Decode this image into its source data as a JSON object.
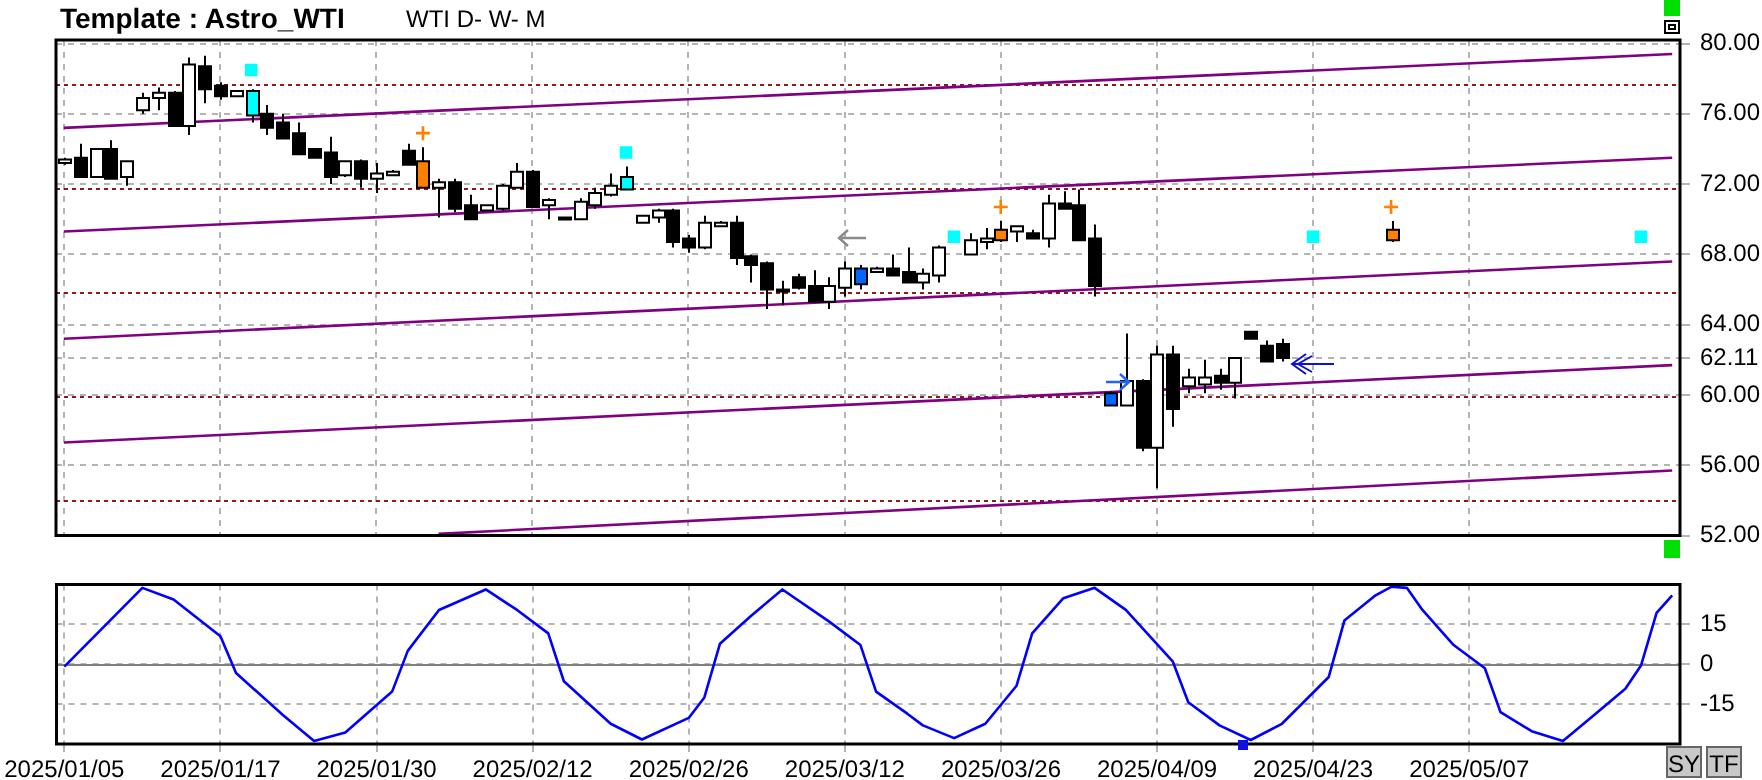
{
  "chart_data": [
    {
      "type": "candlestick",
      "title": "Template : Astro_WTI",
      "annotations": [
        "WTI D- W- M"
      ],
      "categories": [
        "2025/01/05",
        null,
        null,
        null,
        null,
        null,
        null,
        null,
        null,
        null,
        "2025/01/17",
        null,
        null,
        null,
        null,
        null,
        null,
        null,
        null,
        null,
        "2025/01/30",
        null,
        null,
        null,
        null,
        null,
        null,
        null,
        null,
        null,
        "2025/02/12",
        null,
        null,
        null,
        null,
        null,
        null,
        null,
        null,
        null,
        "2025/02/26",
        null,
        null,
        null,
        null,
        null,
        null,
        null,
        null,
        null,
        "2025/03/12",
        null,
        null,
        null,
        null,
        null,
        null,
        null,
        null,
        null,
        "2025/03/26",
        null,
        null,
        null,
        null,
        null,
        null,
        null,
        null,
        null,
        "2025/04/09",
        null,
        null,
        null,
        null,
        null,
        null,
        null,
        null,
        null,
        "2025/04/23",
        null,
        null,
        null,
        null,
        null,
        null,
        null,
        null,
        null,
        "2025/05/07",
        null,
        null,
        null,
        null,
        null,
        null,
        null,
        null,
        null,
        null,
        null,
        null,
        null
      ],
      "ohlc": [
        [
          73.2,
          73.5,
          73.1,
          73.4
        ],
        [
          73.5,
          74.3,
          72.4,
          72.4
        ],
        [
          72.4,
          74.0,
          72.4,
          74.0
        ],
        [
          74.0,
          74.5,
          72.3,
          72.3
        ],
        [
          72.4,
          73.3,
          71.9,
          73.3
        ],
        [
          76.2,
          77.2,
          76.0,
          76.9
        ],
        [
          76.9,
          77.5,
          76.2,
          77.2
        ],
        [
          77.2,
          77.3,
          75.3,
          75.3
        ],
        [
          75.3,
          79.2,
          74.8,
          78.8
        ],
        [
          78.7,
          79.3,
          76.6,
          77.4
        ],
        [
          77.6,
          77.8,
          76.8,
          77.0
        ],
        [
          77.0,
          77.3,
          77.0,
          77.3
        ],
        [
          75.9,
          77.4,
          75.5,
          77.3
        ],
        [
          76.0,
          76.5,
          74.8,
          75.2
        ],
        [
          75.5,
          76.0,
          74.6,
          74.6
        ],
        [
          74.9,
          75.5,
          73.7,
          73.7
        ],
        [
          74.0,
          74.0,
          73.5,
          73.5
        ],
        [
          73.8,
          74.7,
          72.0,
          72.4
        ],
        [
          72.5,
          73.3,
          72.4,
          73.3
        ],
        [
          73.3,
          73.4,
          71.8,
          72.3
        ],
        [
          72.3,
          73.2,
          71.5,
          72.6
        ],
        [
          72.5,
          72.8,
          72.5,
          72.7
        ],
        [
          73.9,
          74.3,
          73.1,
          73.1
        ],
        [
          73.3,
          74.1,
          71.8,
          71.8
        ],
        [
          71.8,
          72.3,
          70.1,
          72.1
        ],
        [
          72.1,
          72.3,
          70.4,
          70.6
        ],
        [
          70.8,
          71.4,
          70.0,
          70.0
        ],
        [
          70.5,
          70.8,
          70.5,
          70.8
        ],
        [
          70.6,
          72.0,
          70.5,
          71.9
        ],
        [
          71.8,
          73.2,
          71.8,
          72.7
        ],
        [
          72.7,
          72.8,
          70.7,
          70.7
        ],
        [
          70.8,
          71.2,
          70.0,
          71.1
        ],
        [
          70.0,
          70.1,
          70.0,
          70.1
        ],
        [
          70.0,
          71.2,
          70.0,
          71.0
        ],
        [
          70.8,
          71.8,
          70.6,
          71.5
        ],
        [
          71.4,
          72.6,
          71.3,
          71.9
        ],
        [
          71.7,
          73.0,
          71.7,
          72.4
        ],
        [
          69.8,
          70.2,
          69.8,
          70.2
        ],
        [
          70.1,
          70.6,
          69.8,
          70.5
        ],
        [
          70.5,
          70.6,
          68.4,
          68.7
        ],
        [
          68.9,
          69.1,
          68.1,
          68.4
        ],
        [
          68.4,
          70.2,
          68.3,
          69.8
        ],
        [
          69.6,
          69.9,
          69.6,
          69.8
        ],
        [
          69.8,
          70.2,
          67.4,
          67.8
        ],
        [
          67.9,
          68.0,
          66.4,
          67.4
        ],
        [
          67.5,
          67.6,
          64.9,
          66.0
        ],
        [
          66.0,
          66.5,
          65.1,
          66.0
        ],
        [
          66.7,
          66.9,
          66.0,
          66.1
        ],
        [
          66.2,
          67.1,
          65.3,
          65.3
        ],
        [
          65.3,
          66.7,
          64.9,
          66.2
        ],
        [
          66.1,
          67.6,
          65.6,
          67.2
        ],
        [
          66.3,
          67.4,
          66.0,
          67.2
        ],
        [
          67.0,
          67.3,
          67.0,
          67.2
        ],
        [
          67.2,
          68.0,
          66.8,
          66.8
        ],
        [
          67.0,
          68.4,
          66.4,
          66.4
        ],
        [
          66.4,
          67.2,
          66.0,
          66.9
        ],
        [
          66.8,
          68.5,
          66.4,
          68.4
        ],
        null,
        [
          68.0,
          69.2,
          68.0,
          68.8
        ],
        [
          68.7,
          69.5,
          68.3,
          68.9
        ],
        [
          68.8,
          69.9,
          68.7,
          69.4
        ],
        [
          69.3,
          69.6,
          68.7,
          69.6
        ],
        [
          69.2,
          69.4,
          68.9,
          68.9
        ],
        [
          68.9,
          71.4,
          68.4,
          70.9
        ],
        [
          70.9,
          71.6,
          70.6,
          70.6
        ],
        [
          70.8,
          71.7,
          68.8,
          68.8
        ],
        [
          68.9,
          69.7,
          65.6,
          66.2
        ],
        [
          60.1,
          60.2,
          59.4,
          59.4
        ],
        [
          59.4,
          63.5,
          59.4,
          60.8
        ],
        [
          60.8,
          60.9,
          56.8,
          57.0
        ],
        [
          57.0,
          62.8,
          54.7,
          62.3
        ],
        [
          62.3,
          62.8,
          58.2,
          59.2
        ],
        [
          60.5,
          61.5,
          60.1,
          61.0
        ],
        [
          60.6,
          62.0,
          60.1,
          61.0
        ],
        [
          61.1,
          61.5,
          60.3,
          60.7
        ],
        [
          60.7,
          62.1,
          59.8,
          62.1
        ],
        [
          63.6,
          63.6,
          63.2,
          63.2
        ],
        [
          62.8,
          63.1,
          61.9,
          61.9
        ],
        [
          62.9,
          63.2,
          61.9,
          62.11
        ],
        null,
        null,
        null,
        null,
        null,
        null,
        [
          68.8,
          69.9,
          68.7,
          69.4
        ],
        null,
        null,
        null,
        null,
        null,
        null,
        null,
        null,
        null,
        null,
        null,
        null,
        null,
        null,
        null,
        null,
        null,
        null
      ],
      "colors": [
        "#ffffff",
        "#000000",
        "#ffffff",
        "#000000",
        "#ffffff",
        "#ffffff",
        "#ffffff",
        "#000000",
        "#ffffff",
        "#000000",
        "#000000",
        "#ffffff",
        "#00ffff",
        "#000000",
        "#000000",
        "#000000",
        "#000000",
        "#000000",
        "#ffffff",
        "#000000",
        "#ffffff",
        "#ffffff",
        "#000000",
        "#ff8000",
        "#ffffff",
        "#000000",
        "#000000",
        "#ffffff",
        "#ffffff",
        "#ffffff",
        "#000000",
        "#ffffff",
        "#ffffff",
        "#ffffff",
        "#ffffff",
        "#ffffff",
        "#00ffff",
        "#ffffff",
        "#ffffff",
        "#000000",
        "#000000",
        "#ffffff",
        "#ffffff",
        "#000000",
        "#000000",
        "#000000",
        "#000000",
        "#000000",
        "#000000",
        "#ffffff",
        "#ffffff",
        "#0066ff",
        "#ffffff",
        "#000000",
        "#000000",
        "#ffffff",
        "#ffffff",
        null,
        "#ffffff",
        "#ffffff",
        "#ff8000",
        "#ffffff",
        "#000000",
        "#ffffff",
        "#000000",
        "#000000",
        "#000000",
        "#0066ff",
        "#ffffff",
        "#000000",
        "#ffffff",
        "#000000",
        "#ffffff",
        "#ffffff",
        "#000000",
        "#ffffff",
        "#000000",
        "#000000",
        "#000000",
        null,
        null,
        null,
        null,
        null,
        null,
        "#ff8000",
        null,
        null,
        null,
        null,
        null,
        null,
        null,
        null,
        null,
        null,
        null,
        null,
        null,
        null,
        null,
        null,
        null,
        null
      ],
      "series": [
        {
          "type": "line",
          "color": "#800080",
          "values": [
            75.2,
            null,
            null,
            null,
            null,
            null,
            null,
            null,
            null,
            null,
            null,
            null,
            null,
            null,
            null,
            null,
            null,
            null,
            null,
            null,
            null,
            null,
            null,
            null,
            null,
            null,
            null,
            null,
            null,
            null,
            null,
            null,
            null,
            null,
            null,
            null,
            null,
            null,
            null,
            null,
            null,
            null,
            null,
            null,
            null,
            null,
            null,
            null,
            null,
            null,
            null,
            null,
            null,
            null,
            null,
            null,
            null,
            null,
            null,
            null,
            null,
            null,
            null,
            null,
            null,
            null,
            null,
            null,
            null,
            null,
            null,
            null,
            null,
            null,
            null,
            null,
            null,
            null,
            null,
            null,
            null,
            null,
            null,
            null,
            null,
            null,
            null,
            null,
            null,
            null,
            null,
            null,
            null,
            null,
            null,
            null,
            null,
            null,
            null,
            null,
            null,
            null,
            null,
            79.4
          ]
        },
        {
          "type": "line",
          "color": "#800080",
          "values": [
            69.3,
            null,
            null,
            null,
            null,
            null,
            null,
            null,
            null,
            null,
            null,
            null,
            null,
            null,
            null,
            null,
            null,
            null,
            null,
            null,
            null,
            null,
            null,
            null,
            null,
            null,
            null,
            null,
            null,
            null,
            null,
            null,
            null,
            null,
            null,
            null,
            null,
            null,
            null,
            null,
            null,
            null,
            null,
            null,
            null,
            null,
            null,
            null,
            null,
            null,
            null,
            null,
            null,
            null,
            null,
            null,
            null,
            null,
            null,
            null,
            null,
            null,
            null,
            null,
            null,
            null,
            null,
            null,
            null,
            null,
            null,
            null,
            null,
            null,
            null,
            null,
            null,
            null,
            null,
            null,
            null,
            null,
            null,
            null,
            null,
            null,
            null,
            null,
            null,
            null,
            null,
            null,
            null,
            null,
            null,
            null,
            null,
            null,
            null,
            null,
            null,
            null,
            null,
            73.5
          ]
        },
        {
          "type": "line",
          "color": "#800080",
          "values": [
            63.2,
            null,
            null,
            null,
            null,
            null,
            null,
            null,
            null,
            null,
            null,
            null,
            null,
            null,
            null,
            null,
            null,
            null,
            null,
            null,
            null,
            null,
            null,
            null,
            null,
            null,
            null,
            null,
            null,
            null,
            null,
            null,
            null,
            null,
            null,
            null,
            null,
            null,
            null,
            null,
            null,
            null,
            null,
            null,
            null,
            null,
            null,
            null,
            null,
            null,
            null,
            null,
            null,
            null,
            null,
            null,
            null,
            null,
            null,
            null,
            null,
            null,
            null,
            null,
            null,
            null,
            null,
            null,
            null,
            null,
            null,
            null,
            null,
            null,
            null,
            null,
            null,
            null,
            null,
            null,
            null,
            null,
            null,
            null,
            null,
            null,
            null,
            null,
            null,
            null,
            null,
            null,
            null,
            null,
            null,
            null,
            null,
            null,
            null,
            null,
            null,
            null,
            null,
            67.6
          ]
        },
        {
          "type": "line",
          "color": "#800080",
          "values": [
            57.3,
            null,
            null,
            null,
            null,
            null,
            null,
            null,
            null,
            null,
            null,
            null,
            null,
            null,
            null,
            null,
            null,
            null,
            null,
            null,
            null,
            null,
            null,
            null,
            null,
            null,
            null,
            null,
            null,
            null,
            null,
            null,
            null,
            null,
            null,
            null,
            null,
            null,
            null,
            null,
            null,
            null,
            null,
            null,
            null,
            null,
            null,
            null,
            null,
            null,
            null,
            null,
            null,
            null,
            null,
            null,
            null,
            null,
            null,
            null,
            null,
            null,
            null,
            null,
            null,
            null,
            null,
            null,
            null,
            null,
            null,
            null,
            null,
            null,
            null,
            null,
            null,
            null,
            null,
            null,
            null,
            null,
            null,
            null,
            null,
            null,
            null,
            null,
            null,
            null,
            null,
            null,
            null,
            null,
            null,
            null,
            null,
            null,
            null,
            null,
            null,
            null,
            null,
            61.7
          ]
        },
        {
          "type": "line",
          "color": "#800080",
          "values": [
            null,
            null,
            null,
            null,
            null,
            null,
            null,
            null,
            null,
            null,
            null,
            null,
            null,
            null,
            null,
            null,
            null,
            null,
            null,
            null,
            null,
            null,
            null,
            null,
            52.1,
            null,
            null,
            null,
            null,
            null,
            null,
            null,
            null,
            null,
            null,
            null,
            null,
            null,
            null,
            null,
            null,
            null,
            null,
            null,
            null,
            null,
            null,
            null,
            null,
            null,
            null,
            null,
            null,
            null,
            null,
            null,
            null,
            null,
            null,
            null,
            null,
            null,
            null,
            null,
            null,
            null,
            null,
            null,
            null,
            null,
            null,
            null,
            null,
            null,
            null,
            null,
            null,
            null,
            null,
            null,
            null,
            null,
            null,
            null,
            null,
            null,
            null,
            null,
            null,
            null,
            null,
            null,
            null,
            null,
            null,
            null,
            null,
            null,
            null,
            null,
            null,
            null,
            null,
            55.7
          ]
        },
        {
          "type": "scatter",
          "marker": "square",
          "color": "#00ffff",
          "values": [
            null,
            null,
            null,
            null,
            null,
            null,
            null,
            null,
            null,
            null,
            null,
            null,
            78.5,
            null,
            null,
            null,
            null,
            null,
            null,
            null,
            null,
            null,
            null,
            null,
            null,
            null,
            null,
            null,
            null,
            null,
            null,
            null,
            null,
            null,
            null,
            null,
            73.8,
            null,
            null,
            null,
            null,
            null,
            null,
            null,
            null,
            null,
            null,
            null,
            null,
            null,
            null,
            null,
            null,
            null,
            null,
            null,
            null,
            69.0,
            null,
            null,
            null,
            null,
            null,
            null,
            null,
            null,
            null,
            null,
            null,
            null,
            null,
            null,
            null,
            null,
            null,
            null,
            null,
            null,
            null,
            null,
            69.0,
            null,
            null,
            null,
            null,
            null,
            null,
            null,
            null,
            null,
            null,
            null,
            null,
            null,
            null,
            null,
            null,
            null,
            null,
            null,
            null,
            69.0,
            null,
            null
          ]
        },
        {
          "type": "scatter",
          "marker": "cross",
          "color": "#ff8000",
          "values": [
            null,
            null,
            null,
            null,
            null,
            null,
            null,
            null,
            null,
            null,
            null,
            null,
            null,
            null,
            null,
            null,
            null,
            null,
            null,
            null,
            null,
            null,
            null,
            74.9,
            null,
            null,
            null,
            null,
            null,
            null,
            null,
            null,
            null,
            null,
            null,
            null,
            null,
            null,
            null,
            null,
            null,
            null,
            null,
            null,
            null,
            null,
            null,
            null,
            null,
            null,
            null,
            null,
            null,
            null,
            null,
            null,
            null,
            null,
            null,
            null,
            70.7,
            null,
            null,
            null,
            null,
            null,
            null,
            null,
            null,
            null,
            null,
            null,
            null,
            null,
            null,
            null,
            null,
            null,
            null,
            null,
            null,
            null,
            null,
            null,
            null,
            70.7,
            null,
            null,
            null,
            null,
            null,
            null,
            null,
            null,
            null,
            null,
            null,
            null,
            null,
            null,
            null,
            null,
            null,
            null
          ]
        }
      ],
      "ylim": [
        52,
        80.2
      ],
      "yticks": [
        {
          "value": 52,
          "label": "52.00"
        },
        {
          "value": 56,
          "label": "56.00"
        },
        {
          "value": 60,
          "label": "60.00"
        },
        {
          "value": 62.11,
          "label": "62.11"
        },
        {
          "value": 64,
          "label": "64.00"
        },
        {
          "value": 68,
          "label": "68.00"
        },
        {
          "value": 72,
          "label": "72.00"
        },
        {
          "value": 76,
          "label": "76.00"
        },
        {
          "value": 80,
          "label": "80.00"
        }
      ],
      "ref_lines": [
        {
          "axis": "y",
          "value": 77.7,
          "color": "#8b1a1a",
          "line_style": "dotted"
        },
        {
          "axis": "y",
          "value": 71.8,
          "color": "#8b1a1a",
          "line_style": "dotted"
        },
        {
          "axis": "y",
          "value": 65.9,
          "color": "#8b1a1a",
          "line_style": "dotted"
        },
        {
          "axis": "y",
          "value": 59.9,
          "color": "#8b1a1a",
          "line_style": "dotted"
        },
        {
          "axis": "y",
          "value": 54.0,
          "color": "#8b1a1a",
          "line_style": "dotted"
        }
      ],
      "grid": true,
      "tick_labels": "y"
    },
    {
      "type": "line",
      "categories": [
        "2025/01/05",
        null,
        null,
        null,
        null,
        null,
        null,
        null,
        null,
        null,
        "2025/01/17",
        null,
        null,
        null,
        null,
        null,
        null,
        null,
        null,
        null,
        "2025/01/30",
        null,
        null,
        null,
        null,
        null,
        null,
        null,
        null,
        null,
        "2025/02/12",
        null,
        null,
        null,
        null,
        null,
        null,
        null,
        null,
        null,
        "2025/02/26",
        null,
        null,
        null,
        null,
        null,
        null,
        null,
        null,
        null,
        "2025/03/12",
        null,
        null,
        null,
        null,
        null,
        null,
        null,
        null,
        null,
        "2025/03/26",
        null,
        null,
        null,
        null,
        null,
        null,
        null,
        null,
        null,
        "2025/04/09",
        null,
        null,
        null,
        null,
        null,
        null,
        null,
        null,
        null,
        "2025/04/23",
        null,
        null,
        null,
        null,
        null,
        null,
        null,
        null,
        null,
        "2025/05/07",
        null,
        null,
        null,
        null,
        null,
        null,
        null,
        null,
        null,
        null,
        null,
        null,
        null
      ],
      "series": [
        {
          "color": "#0000ff",
          "values": [
            -0.9,
            null,
            null,
            null,
            null,
            28.7,
            null,
            24.3,
            null,
            null,
            10.5,
            -3.3,
            null,
            null,
            -19.1,
            null,
            -28.9,
            null,
            -25.7,
            null,
            null,
            -10.3,
            5.0,
            null,
            20.4,
            null,
            null,
            28.1,
            null,
            20.4,
            null,
            11.6,
            -6.4,
            null,
            null,
            -22.4,
            null,
            -28.3,
            null,
            null,
            -20.2,
            -12.5,
            7.7,
            null,
            18.2,
            null,
            28.1,
            null,
            null,
            16.0,
            null,
            7.2,
            -10.3,
            null,
            -18.6,
            -23.0,
            null,
            -27.8,
            null,
            -22.4,
            null,
            -8.1,
            11.6,
            null,
            24.8,
            null,
            28.7,
            null,
            20.4,
            null,
            null,
            1.1,
            -14.3,
            null,
            -23.0,
            null,
            -28.5,
            null,
            -22.4,
            null,
            null,
            -4.8,
            16.4,
            null,
            25.9,
            29.1,
            28.7,
            20.4,
            null,
            7.2,
            null,
            -1.5,
            -18.0,
            null,
            -25.2,
            null,
            -28.9,
            null,
            -19.1,
            null,
            -9.2,
            -0.5,
            19.3,
            25.9
          ]
        }
      ],
      "ylim": [
        -30,
        30
      ],
      "yticks": [
        15,
        0,
        -15
      ],
      "ref_lines": [
        {
          "axis": "y",
          "value": 0,
          "color": "#808080"
        }
      ],
      "grid": true,
      "annotations": [
        "SY",
        "TF"
      ]
    }
  ]
}
